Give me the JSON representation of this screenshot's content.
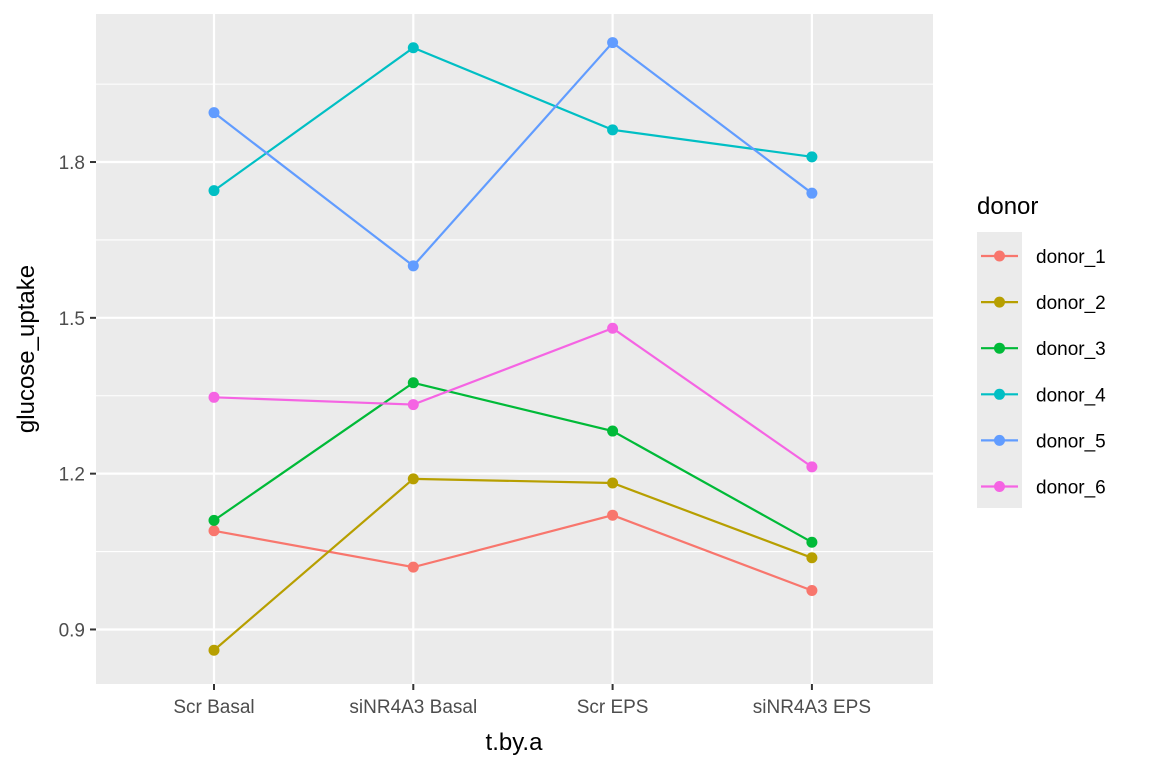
{
  "chart_data": {
    "type": "line",
    "xlabel": "t.by.a",
    "ylabel": "glucose_uptake",
    "categories": [
      "Scr Basal",
      "siNR4A3 Basal",
      "Scr EPS",
      "siNR4A3 EPS"
    ],
    "ylim": [
      0.795,
      2.085
    ],
    "yticks": [
      0.9,
      1.2,
      1.5,
      1.8
    ],
    "ytick_labels": [
      "0.9",
      "1.2",
      "1.5",
      "1.8"
    ],
    "grid": true,
    "legend": {
      "title": "donor",
      "position": "right"
    },
    "series": [
      {
        "name": "donor_1",
        "color": "#F8766D",
        "values": [
          1.09,
          1.02,
          1.12,
          0.975
        ]
      },
      {
        "name": "donor_2",
        "color": "#B79F00",
        "values": [
          0.86,
          1.19,
          1.182,
          1.038
        ]
      },
      {
        "name": "donor_3",
        "color": "#00BA38",
        "values": [
          1.11,
          1.375,
          1.282,
          1.068
        ]
      },
      {
        "name": "donor_4",
        "color": "#00BFC4",
        "values": [
          1.745,
          2.02,
          1.862,
          1.81
        ]
      },
      {
        "name": "donor_5",
        "color": "#619CFF",
        "values": [
          1.895,
          1.6,
          2.03,
          1.74
        ]
      },
      {
        "name": "donor_6",
        "color": "#F564E3",
        "values": [
          1.347,
          1.333,
          1.48,
          1.213
        ]
      }
    ]
  }
}
